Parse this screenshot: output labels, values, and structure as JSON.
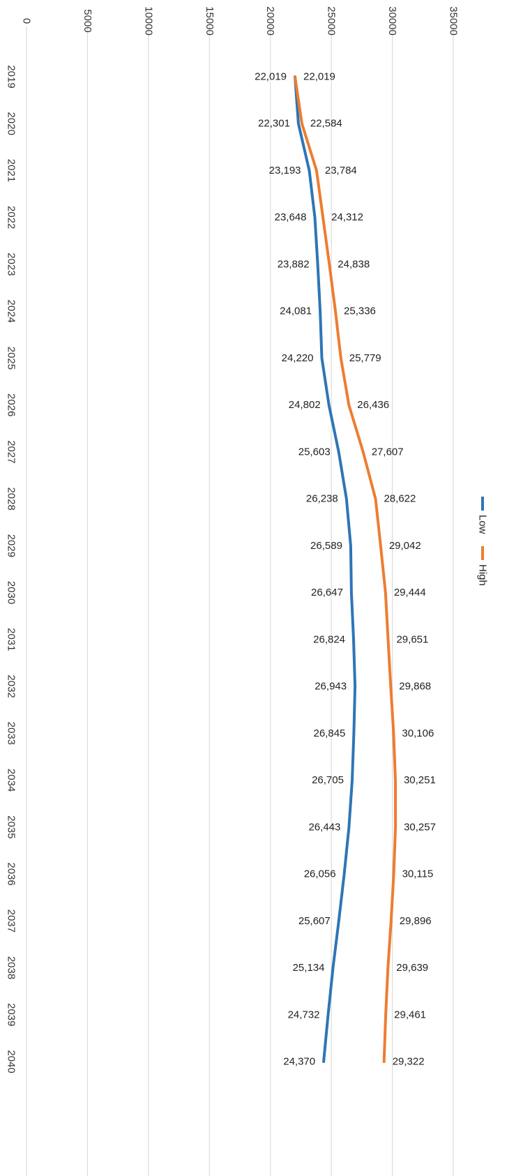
{
  "chart_data": {
    "type": "line",
    "orientation": "rotated-90-clockwise",
    "title": "",
    "xlabel": "",
    "ylabel": "",
    "categories": [
      "2019",
      "2020",
      "2021",
      "2022",
      "2023",
      "2024",
      "2025",
      "2026",
      "2027",
      "2028",
      "2029",
      "2030",
      "2031",
      "2032",
      "2033",
      "2034",
      "2035",
      "2036",
      "2037",
      "2038",
      "2039",
      "2040"
    ],
    "ylim": [
      0,
      35000
    ],
    "yticks": [
      0,
      5000,
      10000,
      15000,
      20000,
      25000,
      30000,
      35000
    ],
    "ytick_labels": [
      "0",
      "5000",
      "10000",
      "15000",
      "20000",
      "25000",
      "30000",
      "35000"
    ],
    "grid": true,
    "legend_position": "right",
    "series": [
      {
        "name": "Low",
        "color": "#2e75b6",
        "values": [
          22019,
          22301,
          23193,
          23648,
          23882,
          24081,
          24220,
          24802,
          25603,
          26238,
          26589,
          26647,
          26824,
          26943,
          26845,
          26705,
          26443,
          26056,
          25607,
          25134,
          24732,
          24370
        ],
        "labels": [
          "22,019",
          "22,301",
          "23,193",
          "23,648",
          "23,882",
          "24,081",
          "24,220",
          "24,802",
          "25,603",
          "26,238",
          "26,589",
          "26,647",
          "26,824",
          "26,943",
          "26,845",
          "26,705",
          "26,443",
          "26,056",
          "25,607",
          "25,134",
          "24,732",
          "24,370"
        ]
      },
      {
        "name": "High",
        "color": "#ed7d31",
        "values": [
          22019,
          22584,
          23784,
          24312,
          24838,
          25336,
          25779,
          26436,
          27607,
          28622,
          29042,
          29444,
          29651,
          29868,
          30106,
          30251,
          30257,
          30115,
          29896,
          29639,
          29461,
          29322
        ],
        "labels": [
          "22,019",
          "22,584",
          "23,784",
          "24,312",
          "24,838",
          "25,336",
          "25,779",
          "26,436",
          "27,607",
          "28,622",
          "29,042",
          "29,444",
          "29,651",
          "29,868",
          "30,106",
          "30,251",
          "30,257",
          "30,115",
          "29,896",
          "29,639",
          "29,461",
          "29,322"
        ]
      }
    ]
  }
}
